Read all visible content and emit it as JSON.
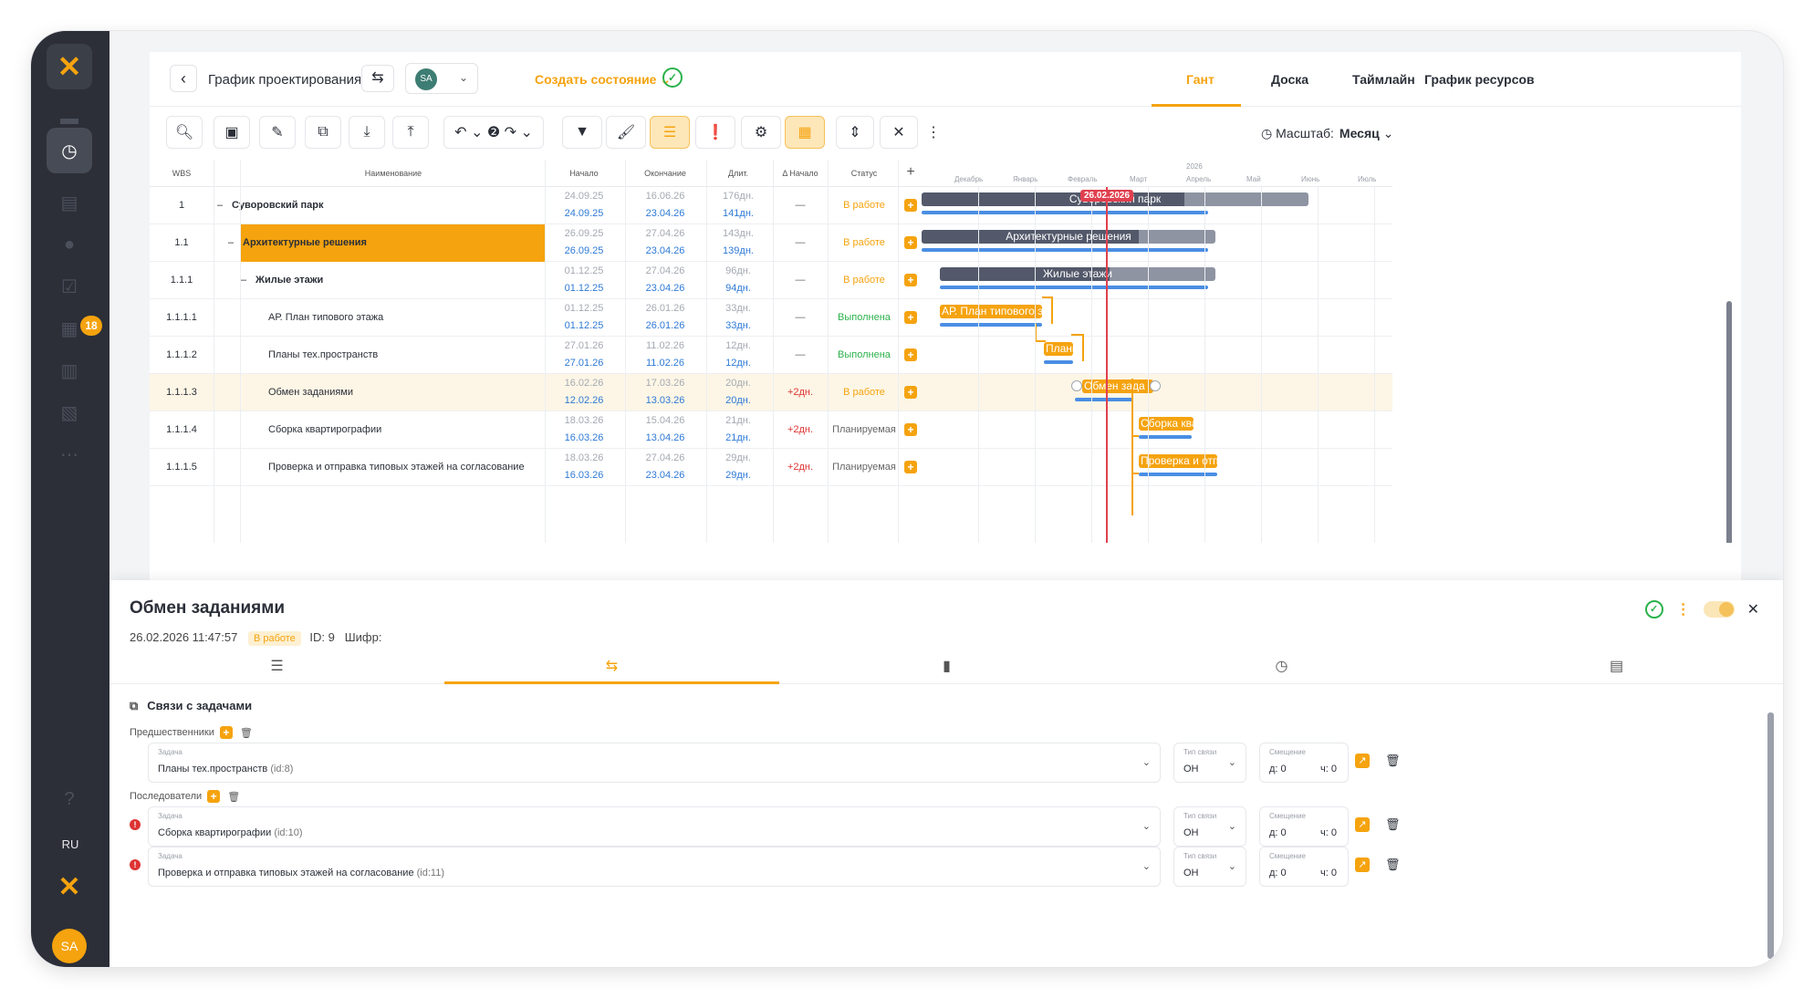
{
  "sidebar": {
    "logo": "✕",
    "badge": "18",
    "lang": "RU",
    "avatar": "SA"
  },
  "header": {
    "title": "График проектирования",
    "user": "SA",
    "create_state": "Создать состояние",
    "tabs": [
      "Гант",
      "Доска",
      "Таймлайн",
      "График ресурсов"
    ]
  },
  "toolbar": {
    "scale_label": "Масштаб:",
    "scale_value": "Месяц"
  },
  "columns": {
    "wbs": "WBS",
    "name": "Наименование",
    "start": "Начало",
    "end": "Окончание",
    "dur": "Длит.",
    "delta": "Δ Начало",
    "status": "Статус"
  },
  "gantt": {
    "year": "2026",
    "months": [
      "Декабрь",
      "Январь",
      "Февраль",
      "Март",
      "Апрель",
      "Май",
      "Июнь",
      "Июль"
    ],
    "today": "26.02.2026"
  },
  "rows": [
    {
      "wbs": "1",
      "name": "Суворовский парк",
      "s1": "24.09.25",
      "s2": "24.09.25",
      "e1": "16.06.26",
      "e2": "23.04.26",
      "d1": "176дн.",
      "d2": "141дн.",
      "delta": "—",
      "status": "В работе",
      "bar": "Суворовский парк"
    },
    {
      "wbs": "1.1",
      "name": "Архитектурные решения",
      "s1": "26.09.25",
      "s2": "26.09.25",
      "e1": "27.04.26",
      "e2": "23.04.26",
      "d1": "143дн.",
      "d2": "139дн.",
      "delta": "—",
      "status": "В работе",
      "bar": "Архитектурные решения"
    },
    {
      "wbs": "1.1.1",
      "name": "Жилые этажи",
      "s1": "01.12.25",
      "s2": "01.12.25",
      "e1": "27.04.26",
      "e2": "23.04.26",
      "d1": "96дн.",
      "d2": "94дн.",
      "delta": "—",
      "status": "В работе",
      "bar": "Жилые этажи"
    },
    {
      "wbs": "1.1.1.1",
      "name": "АР. План типового этажа",
      "s1": "01.12.25",
      "s2": "01.12.25",
      "e1": "26.01.26",
      "e2": "26.01.26",
      "d1": "33дн.",
      "d2": "33дн.",
      "delta": "—",
      "status": "Выполнена",
      "bar": "АР. План типового эта"
    },
    {
      "wbs": "1.1.1.2",
      "name": "Планы тех.пространств",
      "s1": "27.01.26",
      "s2": "27.01.26",
      "e1": "11.02.26",
      "e2": "11.02.26",
      "d1": "12дн.",
      "d2": "12дн.",
      "delta": "—",
      "status": "Выполнена",
      "bar": "Планы"
    },
    {
      "wbs": "1.1.1.3",
      "name": "Обмен заданиями",
      "s1": "16.02.26",
      "s2": "12.02.26",
      "e1": "17.03.26",
      "e2": "13.03.26",
      "d1": "20дн.",
      "d2": "20дн.",
      "delta": "+2дн.",
      "status": "В работе",
      "bar": "Обмен зада"
    },
    {
      "wbs": "1.1.1.4",
      "name": "Сборка квартирографии",
      "s1": "18.03.26",
      "s2": "16.03.26",
      "e1": "15.04.26",
      "e2": "13.04.26",
      "d1": "21дн.",
      "d2": "21дн.",
      "delta": "+2дн.",
      "status": "Планируемая",
      "bar": "Сборка квар"
    },
    {
      "wbs": "1.1.1.5",
      "name": "Проверка и отправка типовых этажей на согласование",
      "s1": "18.03.26",
      "s2": "16.03.26",
      "e1": "27.04.26",
      "e2": "23.04.26",
      "d1": "29дн.",
      "d2": "29дн.",
      "delta": "+2дн.",
      "status": "Планируемая",
      "bar": "Проверка и отпр"
    }
  ],
  "panel": {
    "title": "Обмен заданиями",
    "datetime": "26.02.2026 11:47:57",
    "status": "В работе",
    "id": "ID: 9",
    "cipher": "Шифр:",
    "section": "Связи с задачами",
    "pred_label": "Предшественники",
    "succ_label": "Последователи",
    "field_task": "Задача",
    "field_type": "Тип связи",
    "field_offset": "Смещение",
    "links": [
      {
        "task": "Планы тех.пространств",
        "id": "(id:8)",
        "type": "ОН",
        "d": "д: 0",
        "h": "ч: 0"
      },
      {
        "task": "Сборка квартирографии",
        "id": "(id:10)",
        "type": "ОН",
        "d": "д: 0",
        "h": "ч: 0"
      },
      {
        "task": "Проверка и отправка типовых этажей на согласование",
        "id": "(id:11)",
        "type": "ОН",
        "d": "д: 0",
        "h": "ч: 0"
      }
    ]
  }
}
